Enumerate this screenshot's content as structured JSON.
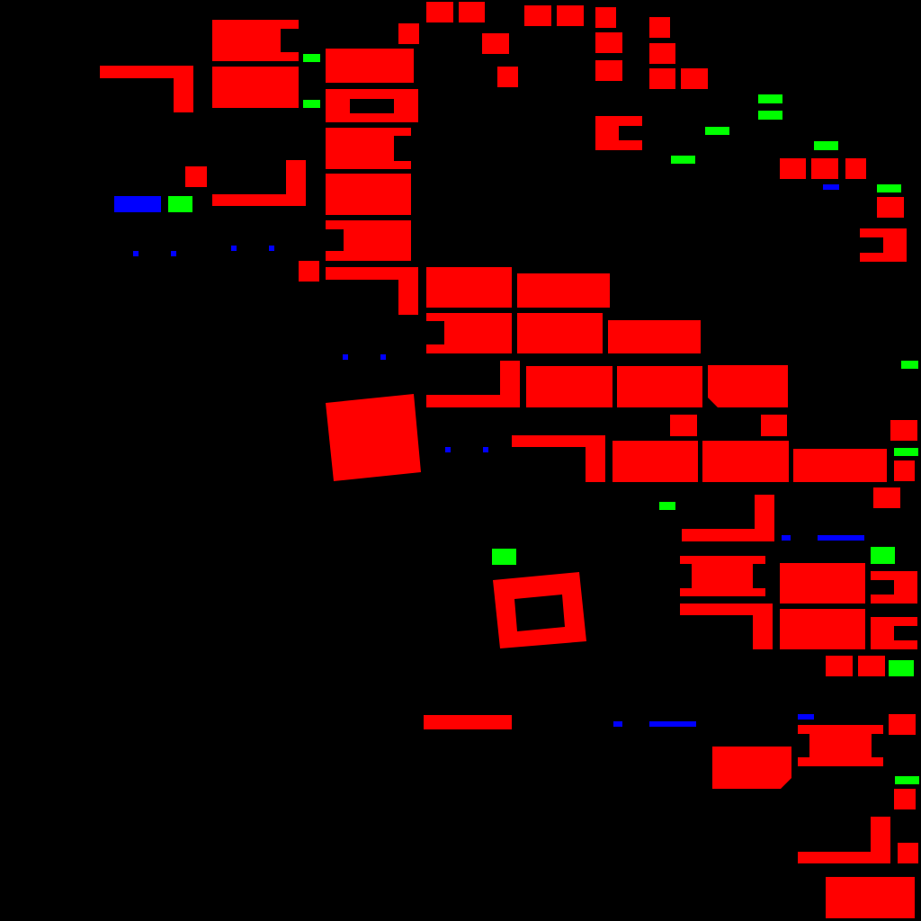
{
  "map": {
    "colors": {
      "background": "#000000",
      "building": "#ff0000",
      "green_feature": "#00ff00",
      "blue_feature": "#0000ff"
    },
    "legend": []
  }
}
